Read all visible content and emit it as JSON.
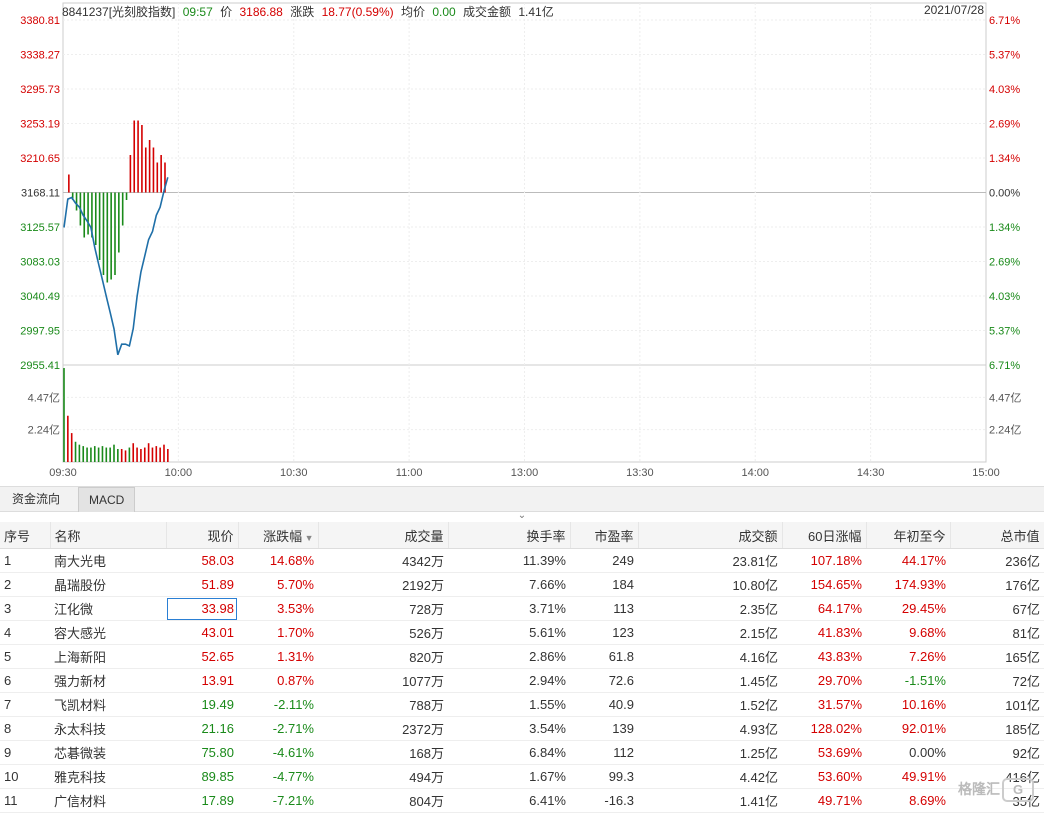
{
  "header": {
    "code_name": "8841237[光刻胶指数]",
    "time": "09:57",
    "price_label": "价",
    "price": "3186.88",
    "change_label": "涨跌",
    "change": "18.77(0.59%)",
    "avg_label": "均价",
    "avg": "0.00",
    "turnover_label": "成交金额",
    "turnover": "1.41亿",
    "date": "2021/07/28"
  },
  "price_axis": [
    "3380.81",
    "3338.27",
    "3295.73",
    "3253.19",
    "3210.65",
    "3168.11",
    "3125.57",
    "3083.03",
    "3040.49",
    "2997.95",
    "2955.41"
  ],
  "pct_axis": [
    "6.71%",
    "5.37%",
    "4.03%",
    "2.69%",
    "1.34%",
    "0.00%",
    "1.34%",
    "2.69%",
    "4.03%",
    "5.37%",
    "6.71%"
  ],
  "vol_axis": [
    "4.47亿",
    "2.24亿"
  ],
  "time_axis": [
    "09:30",
    "10:00",
    "10:30",
    "11:00",
    "13:00",
    "13:30",
    "14:00",
    "14:30",
    "15:00"
  ],
  "colors": {
    "up": "#d40000",
    "down": "#1a8a1a",
    "line": "#1f6fa8"
  },
  "chart_data": {
    "type": "line",
    "base": 3168.11,
    "ylim": [
      2955.41,
      3380.81
    ],
    "x": [
      "09:30",
      "09:31",
      "09:32",
      "09:33",
      "09:34",
      "09:35",
      "09:36",
      "09:37",
      "09:38",
      "09:39",
      "09:40",
      "09:41",
      "09:42",
      "09:43",
      "09:44",
      "09:45",
      "09:46",
      "09:47",
      "09:48",
      "09:49",
      "09:50",
      "09:51",
      "09:52",
      "09:53",
      "09:54",
      "09:55",
      "09:56",
      "09:57"
    ],
    "series": [
      {
        "values": [
          3125,
          3160,
          3162,
          3155,
          3150,
          3140,
          3133,
          3125,
          3100,
          3080,
          3060,
          3040,
          3020,
          3000,
          2968,
          2981,
          2981,
          2979,
          3000,
          3040,
          3070,
          3090,
          3110,
          3120,
          3140,
          3150,
          3170,
          3186.88
        ]
      }
    ],
    "bars_diff": [
      0,
      12,
      -5,
      -12,
      -22,
      -30,
      -28,
      -30,
      -35,
      -45,
      -55,
      -60,
      -58,
      -55,
      -40,
      -22,
      -5,
      25,
      48,
      48,
      45,
      30,
      35,
      30,
      20,
      25,
      20,
      0
    ],
    "volume_ylim": [
      0,
      6.71
    ],
    "volume": [
      6.5,
      3.2,
      2.0,
      1.4,
      1.2,
      1.1,
      1.0,
      1.0,
      1.1,
      1.0,
      1.1,
      1.0,
      1.0,
      1.2,
      0.9,
      0.9,
      0.8,
      1.0,
      1.3,
      1.0,
      0.9,
      1.0,
      1.3,
      1.0,
      1.1,
      1.0,
      1.2,
      0.9
    ]
  },
  "tabs": [
    "资金流向",
    "MACD"
  ],
  "table": {
    "headers": [
      "序号",
      "名称",
      "现价",
      "涨跌幅",
      "成交量",
      "换手率",
      "市盈率",
      "成交额",
      "60日涨幅",
      "年初至今",
      "总市值"
    ],
    "rows": [
      [
        "1",
        "南大光电",
        "58.03",
        "14.68%",
        "4342万",
        "11.39%",
        "249",
        "23.81亿",
        "107.18%",
        "44.17%",
        "236亿"
      ],
      [
        "2",
        "晶瑞股份",
        "51.89",
        "5.70%",
        "2192万",
        "7.66%",
        "184",
        "10.80亿",
        "154.65%",
        "174.93%",
        "176亿"
      ],
      [
        "3",
        "江化微",
        "33.98",
        "3.53%",
        "728万",
        "3.71%",
        "113",
        "2.35亿",
        "64.17%",
        "29.45%",
        "67亿"
      ],
      [
        "4",
        "容大感光",
        "43.01",
        "1.70%",
        "526万",
        "5.61%",
        "123",
        "2.15亿",
        "41.83%",
        "9.68%",
        "81亿"
      ],
      [
        "5",
        "上海新阳",
        "52.65",
        "1.31%",
        "820万",
        "2.86%",
        "61.8",
        "4.16亿",
        "43.83%",
        "7.26%",
        "165亿"
      ],
      [
        "6",
        "强力新材",
        "13.91",
        "0.87%",
        "1077万",
        "2.94%",
        "72.6",
        "1.45亿",
        "29.70%",
        "-1.51%",
        "72亿"
      ],
      [
        "7",
        "飞凯材料",
        "19.49",
        "-2.11%",
        "788万",
        "1.55%",
        "40.9",
        "1.52亿",
        "31.57%",
        "10.16%",
        "101亿"
      ],
      [
        "8",
        "永太科技",
        "21.16",
        "-2.71%",
        "2372万",
        "3.54%",
        "139",
        "4.93亿",
        "128.02%",
        "92.01%",
        "185亿"
      ],
      [
        "9",
        "芯碁微装",
        "75.80",
        "-4.61%",
        "168万",
        "6.84%",
        "112",
        "1.25亿",
        "53.69%",
        "0.00%",
        "92亿"
      ],
      [
        "10",
        "雅克科技",
        "89.85",
        "-4.77%",
        "494万",
        "1.67%",
        "99.3",
        "4.42亿",
        "53.60%",
        "49.91%",
        "416亿"
      ],
      [
        "11",
        "广信材料",
        "17.89",
        "-7.21%",
        "804万",
        "6.41%",
        "-16.3",
        "1.41亿",
        "49.71%",
        "8.69%",
        "35亿"
      ]
    ]
  },
  "watermark": "格隆汇"
}
